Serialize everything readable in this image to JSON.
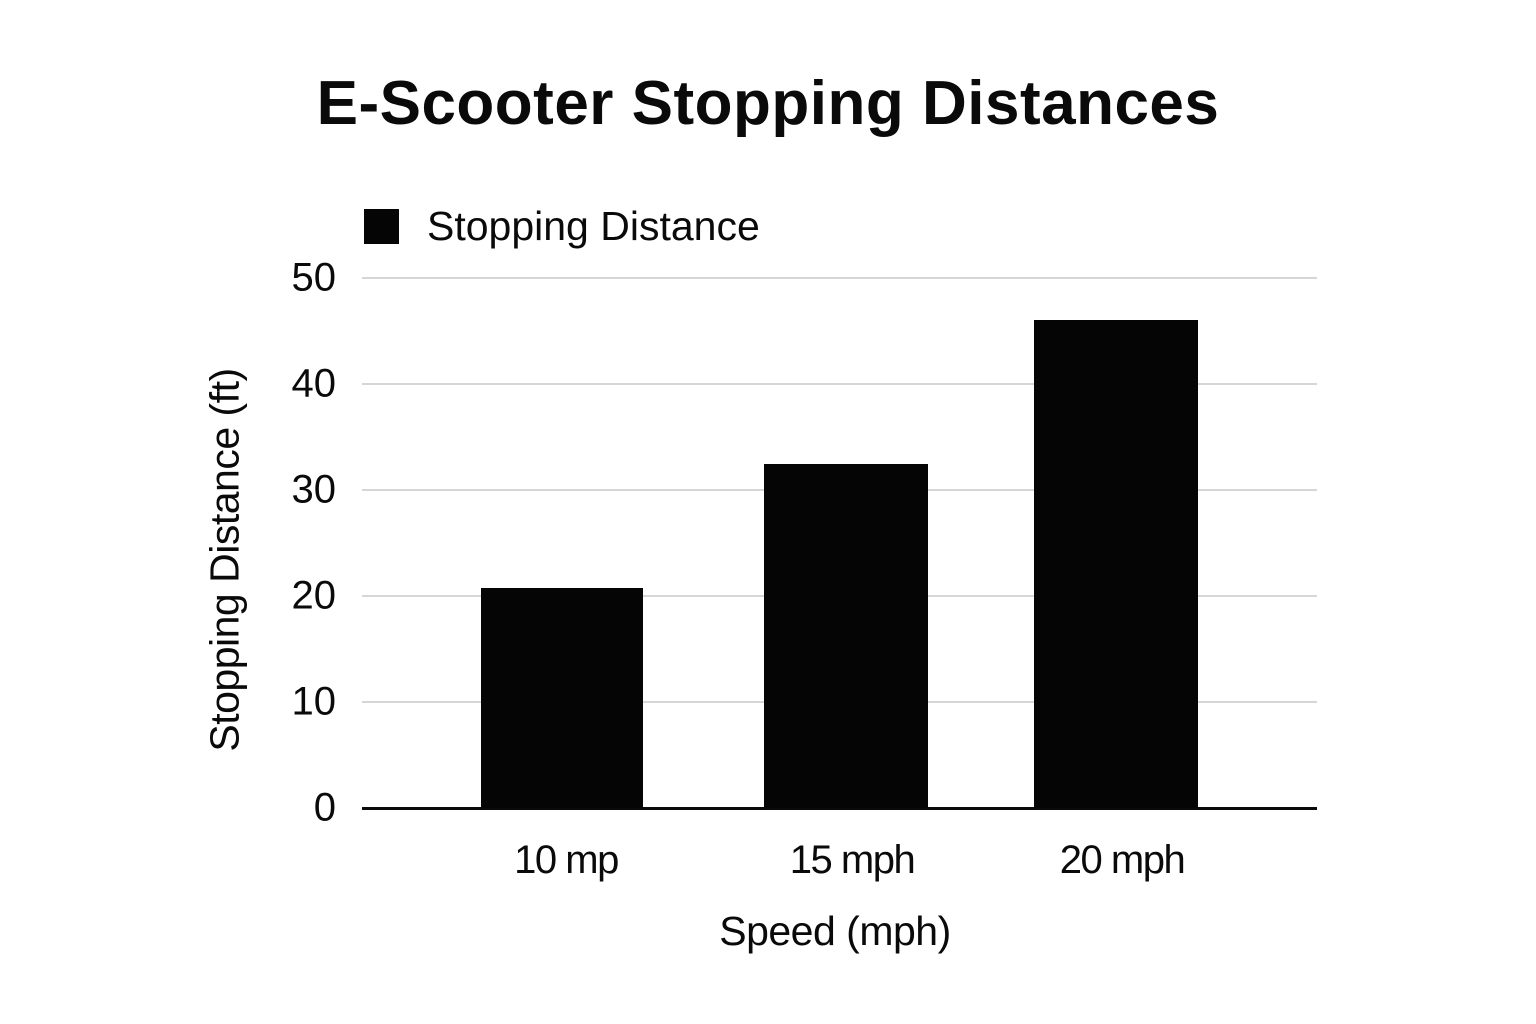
{
  "chart_data": {
    "type": "bar",
    "title": "E-Scooter Stopping Distances",
    "categories": [
      "10 mp",
      "15 mph",
      "20 mph"
    ],
    "series": [
      {
        "name": "Stopping Distance",
        "values": [
          20.8,
          32.5,
          46
        ],
        "color": "#050505"
      }
    ],
    "values": [
      20.8,
      32.5,
      46
    ],
    "xlabel": "Speed (mph)",
    "ylabel": "Stopping Distance (ft)",
    "ylim": [
      0,
      50
    ],
    "yticks": [
      "0",
      "10",
      "20",
      "30",
      "40",
      "50"
    ],
    "grid": true,
    "legend_position": "top-left"
  },
  "title": "E-Scooter Stopping Distances",
  "legend": {
    "label": "Stopping Distance"
  },
  "axes": {
    "xlabel": "Speed (mph)",
    "ylabel": "Stopping Distance (ft)",
    "yticks": [
      "0",
      "10",
      "20",
      "30",
      "40",
      "50"
    ],
    "xticks": [
      "10 mp",
      "15 mph",
      "20 mph"
    ]
  }
}
